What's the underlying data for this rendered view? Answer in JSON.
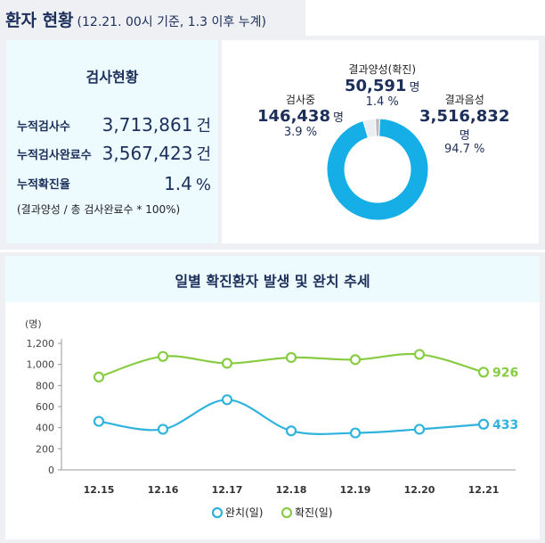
{
  "header": {
    "title": "환자 현황",
    "subtitle": "(12.21. 00시 기준, 1.3 이후 누계)"
  },
  "tests": {
    "title": "검사현황",
    "rows": [
      {
        "label": "누적검사수",
        "value": "3,713,861",
        "unit": "건"
      },
      {
        "label": "누적검사완료수",
        "value": "3,567,423",
        "unit": "건"
      },
      {
        "label": "누적확진율",
        "value": "1.4",
        "unit": "%"
      }
    ],
    "formula": "(결과양성 / 총 검사완료수 * 100%)"
  },
  "donut": {
    "unit": "명",
    "segments": [
      {
        "name": "결과음성",
        "value": "3,516,832",
        "pct": "94.7 %",
        "fraction": 0.947,
        "color": "#15aee6"
      },
      {
        "name": "결과양성(확진)",
        "value": "50,591",
        "pct": "1.4 %",
        "fraction": 0.014,
        "color": "#b9b9b9"
      },
      {
        "name": "검사중",
        "value": "146,438",
        "pct": "3.9 %",
        "fraction": 0.039,
        "color": "#e9eef2"
      }
    ]
  },
  "chart": {
    "title": "일별 확진환자 발생 및 완치 추세",
    "ylabel": "(명)"
  },
  "chart_data": {
    "type": "line",
    "title": "일별 확진환자 발생 및 완치 추세",
    "ylabel": "(명)",
    "x": [
      "12.15",
      "12.16",
      "12.17",
      "12.18",
      "12.19",
      "12.20",
      "12.21"
    ],
    "ylim": [
      0,
      1200
    ],
    "yticks": [
      "0",
      "200",
      "400",
      "600",
      "800",
      "1,000",
      "1,200"
    ],
    "grid": false,
    "legend": "bottom",
    "series": [
      {
        "name": "완치(일)",
        "values": [
          460,
          385,
          665,
          370,
          350,
          385,
          433
        ],
        "color": "#2fb3dd",
        "end_label": "433"
      },
      {
        "name": "확진(일)",
        "values": [
          880,
          1075,
          1010,
          1065,
          1045,
          1095,
          926
        ],
        "color": "#88cc44",
        "end_label": "926"
      }
    ]
  }
}
